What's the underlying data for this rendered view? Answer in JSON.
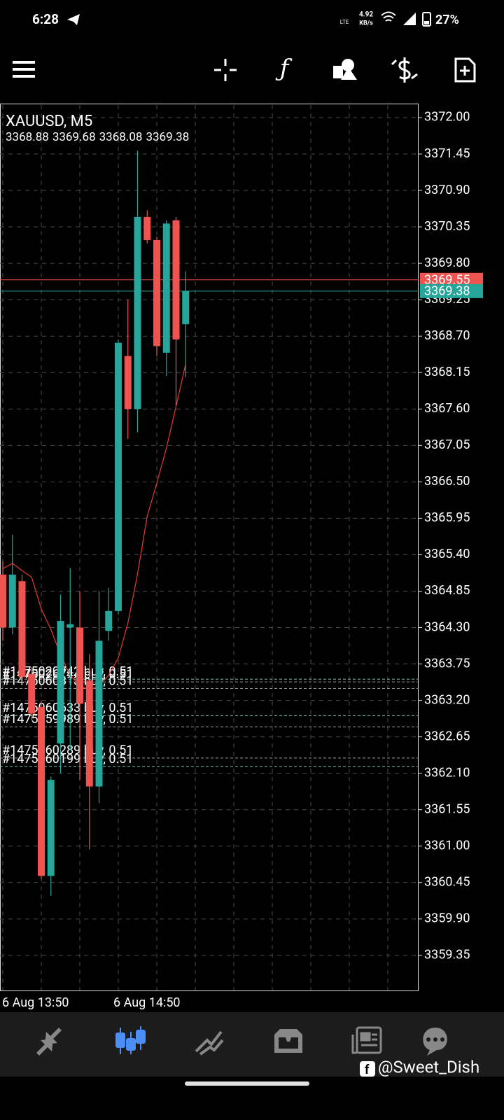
{
  "status_bar": {
    "time": "6:28",
    "network": "LTE",
    "speed": "4.92",
    "speed_unit": "KB/s",
    "battery": "27%"
  },
  "watermark": "@Sweet_Dish",
  "chart_data": {
    "type": "candlestick",
    "title": "XAUUSD, M5",
    "categories": [
      "6 Aug 13:50",
      null,
      null,
      null,
      null,
      null,
      null,
      null,
      null,
      null,
      null,
      null,
      "6 Aug 14:50",
      null,
      null,
      null,
      null,
      null,
      null,
      null
    ],
    "open": [
      3365.1,
      3364.3,
      3365.0,
      3363.6,
      3363.1,
      3360.55,
      3362.55,
      3364.3,
      3364.3,
      3363.5,
      3361.9,
      3364.25,
      3364.55,
      3368.4,
      3367.6,
      3370.5,
      3370.15,
      3368.45,
      3370.45,
      3368.88
    ],
    "high": [
      3365.3,
      3365.7,
      3365.1,
      3363.7,
      3363.2,
      3362.05,
      3364.8,
      3365.2,
      3364.85,
      3363.9,
      3364.85,
      3364.9,
      3368.65,
      3369.25,
      3371.5,
      3370.6,
      3370.2,
      3370.45,
      3370.5,
      3369.68
    ],
    "low": [
      3364.1,
      3364.2,
      3363.45,
      3362.9,
      3360.5,
      3360.25,
      3362.1,
      3362.45,
      3362.0,
      3360.95,
      3361.65,
      3364.1,
      3364.5,
      3367.15,
      3367.25,
      3370.1,
      3368.4,
      3368.1,
      3367.65,
      3368.08
    ],
    "close": [
      3364.3,
      3365.1,
      3363.55,
      3363.0,
      3360.55,
      3362.0,
      3364.4,
      3364.35,
      3363.15,
      3361.9,
      3364.1,
      3364.55,
      3368.6,
      3367.6,
      3370.5,
      3370.15,
      3368.55,
      3370.4,
      3368.65,
      3369.38
    ],
    "ma": [
      3365.19,
      3365.27,
      3365.16,
      3365.06,
      3364.58,
      3364.27,
      3363.89,
      3363.58,
      3363.42,
      3363.36,
      3363.42,
      3363.58,
      3363.84,
      3364.37,
      3365.11,
      3365.98,
      3366.48,
      3367.01,
      3367.64,
      3368.28
    ],
    "up_color": "#26a69a",
    "down_color": "#ef5350",
    "ma_color": "#e53935",
    "bid": 3369.55,
    "bid_color": "#ef5350",
    "ask": 3369.38,
    "ask_color": "#26a69a",
    "trades": [
      {
        "label": "#1475020742 buy, 0.51",
        "price": 3363.52
      },
      {
        "label": "#1475026744 buy, 0.51",
        "price": 3363.48
      },
      {
        "label": "#1475060813 buy, 0.51",
        "price": 3363.38
      },
      {
        "label": "#1475060633 buy, 0.51",
        "price": 3362.97
      },
      {
        "label": "#1475059989 buy, 0.51",
        "price": 3362.8
      },
      {
        "label": "#1475060289 buy, 0.51",
        "price": 3362.33
      },
      {
        "label": "#1475060199 buy, 0.51",
        "price": 3362.2
      }
    ],
    "ylim": [
      3358.82,
      3372.19
    ],
    "yticks": [
      {
        "value": 3372.0,
        "label": "3372.00"
      },
      3371.45,
      {
        "value": 3370.9,
        "label": "3370.90"
      },
      3370.35,
      {
        "value": 3369.8,
        "label": "3369.80"
      },
      3369.25,
      {
        "value": 3368.7,
        "label": "3368.70"
      },
      3368.15,
      {
        "value": 3367.6,
        "label": "3367.60"
      },
      3367.05,
      {
        "value": 3366.5,
        "label": "3366.50"
      },
      3365.95,
      {
        "value": 3365.4,
        "label": "3365.40"
      },
      3364.85,
      {
        "value": 3364.3,
        "label": "3364.30"
      },
      3363.75,
      {
        "value": 3363.2,
        "label": "3363.20"
      },
      3362.65,
      {
        "value": 3362.1,
        "label": "3362.10"
      },
      3361.55,
      {
        "value": 3361.0,
        "label": "3361.00"
      },
      3360.45,
      {
        "value": 3359.9,
        "label": "3359.90"
      },
      3359.35
    ],
    "grid": true
  }
}
